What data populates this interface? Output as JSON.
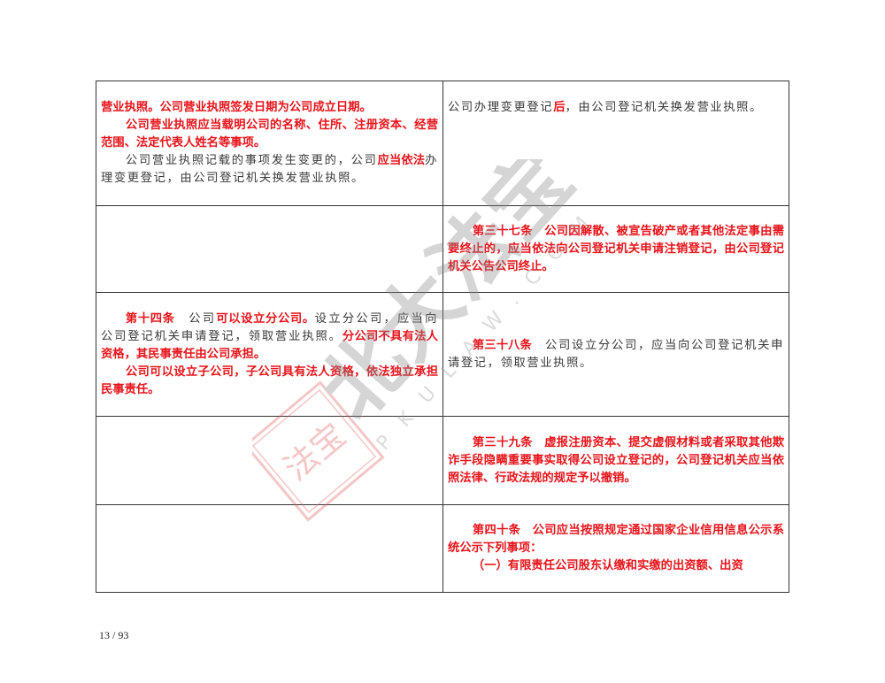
{
  "rows": [
    {
      "left": [
        {
          "indent": false,
          "segs": [
            {
              "t": "营业执照。公司营业执照签发日期为公司成立日期。",
              "red": true
            }
          ]
        },
        {
          "indent": true,
          "segs": [
            {
              "t": "公司营业执照应当载明公司的名称、住所、注册资本、经营范围、法定代表人姓名等事项。",
              "red": true
            }
          ]
        },
        {
          "indent": true,
          "segs": [
            {
              "t": "公司营业执照记载的事项发生变更的，公司",
              "red": false
            },
            {
              "t": "应当依法",
              "red": true
            },
            {
              "t": "办理变更登记，由公司登记机关换发营业执照。",
              "red": false
            }
          ]
        }
      ],
      "right": [
        {
          "indent": false,
          "segs": [
            {
              "t": "公司办理变更登记",
              "red": false
            },
            {
              "t": "后",
              "red": true
            },
            {
              "t": "，由公司登记机关换发营业执照。",
              "red": false
            }
          ]
        }
      ]
    },
    {
      "left": [],
      "right": [
        {
          "indent": true,
          "segs": [
            {
              "t": "第三十七条　公司因解散、被宣告破产或者其他法定事由需要终止的，应当依法向公司登记机关申请注销登记，由公司登记机关公告公司终止。",
              "red": true
            }
          ]
        }
      ]
    },
    {
      "left": [
        {
          "indent": true,
          "segs": [
            {
              "t": "第十四条",
              "red": true
            },
            {
              "t": "　公司",
              "red": false
            },
            {
              "t": "可以设立分公司。",
              "red": true
            },
            {
              "t": "设立分公司，应当向公司登记机关申请登记，领取营业执照。",
              "red": false
            },
            {
              "t": "分公司不具有法人资格，其民事责任由公司承担。",
              "red": true
            }
          ]
        },
        {
          "indent": true,
          "segs": [
            {
              "t": "公司可以设立子公司，子公司具有法人资格，依法独立承担民事责任。",
              "red": true
            }
          ]
        }
      ],
      "right": [
        {
          "indent": true,
          "segs": [
            {
              "t": "第三十八条",
              "red": true
            },
            {
              "t": "　公司设立分公司，应当向公司登记机关申请登记，领取营业执照。",
              "red": false
            }
          ]
        }
      ]
    },
    {
      "left": [],
      "right": [
        {
          "indent": true,
          "segs": [
            {
              "t": "第三十九条　虚报注册资本、提交虚假材料或者采取其他欺诈手段隐瞒重要事实取得公司设立登记的，公司登记机关应当依照法律、行政法规的规定予以撤销。",
              "red": true
            }
          ]
        }
      ]
    },
    {
      "left": [],
      "right": [
        {
          "indent": true,
          "segs": [
            {
              "t": "第四十条　公司应当按照规定通过国家企业信用信息公示系统公示下列事项：",
              "red": true
            }
          ]
        },
        {
          "indent": true,
          "segs": [
            {
              "t": "（一）有限责任公司股东认缴和实缴的出资额、出资",
              "red": true
            }
          ]
        }
      ]
    }
  ],
  "page_number": "13 / 93",
  "watermark": {
    "seal": "北大法宝",
    "script": "北大法宝",
    "url": "PKULAW.COM"
  },
  "colors": {
    "red": "#e8141b",
    "text": "#333333"
  }
}
